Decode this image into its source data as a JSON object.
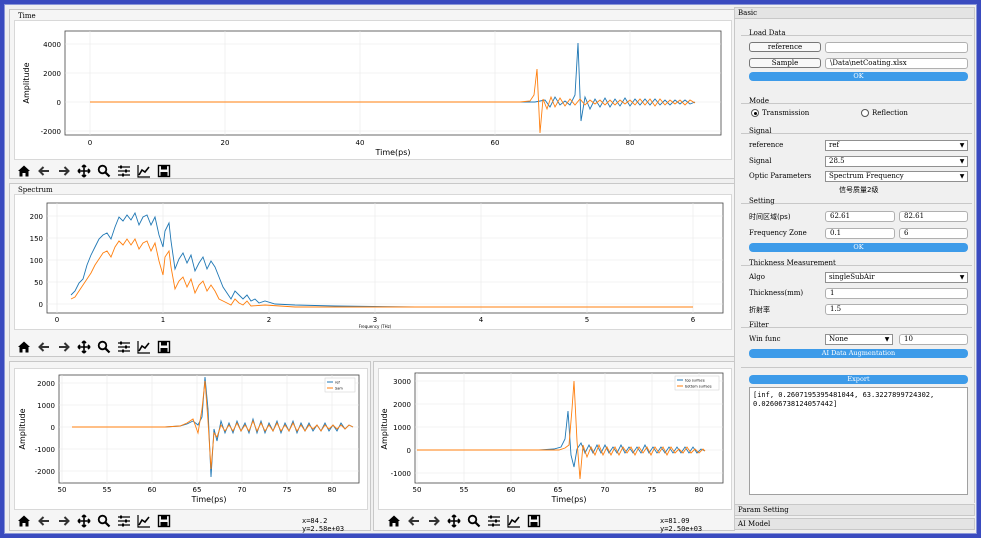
{
  "time_panel": {
    "title": "Time",
    "xlabel": "Time(ps)",
    "ylabel": "Amplitude",
    "xticks": [
      "0",
      "20",
      "40",
      "60",
      "80"
    ],
    "yticks": [
      "4000",
      "2000",
      "0",
      "-2000"
    ]
  },
  "spectrum_panel": {
    "title": "Spectrum",
    "xlabel": "Frequency (THz)",
    "xticks": [
      "0",
      "1",
      "2",
      "3",
      "4",
      "5",
      "6"
    ],
    "yticks": [
      "200",
      "150",
      "100",
      "50",
      "0"
    ]
  },
  "bottom_left": {
    "xlabel": "Time(ps)",
    "ylabel": "Amplitude",
    "xticks": [
      "50",
      "55",
      "60",
      "65",
      "70",
      "75",
      "80"
    ],
    "yticks": [
      "2000",
      "1000",
      "0",
      "-1000",
      "-2000"
    ],
    "legend": [
      "ref",
      "Sam"
    ],
    "coord": "x=84.2  y=2.58e+03"
  },
  "bottom_right": {
    "xlabel": "Time(ps)",
    "ylabel": "Amplitude",
    "xticks": [
      "50",
      "55",
      "60",
      "65",
      "70",
      "75",
      "80"
    ],
    "yticks": [
      "3000",
      "2000",
      "1000",
      "0",
      "-1000"
    ],
    "legend": [
      "top surface",
      "bottom surface"
    ],
    "coord": "x=81.09  y=2.50e+03"
  },
  "toolbar_icons": [
    "home-icon",
    "back-icon",
    "forward-icon",
    "pan-icon",
    "zoom-icon",
    "configure-icon",
    "edit-curve-icon",
    "save-icon"
  ],
  "right_panel": {
    "tab_basic": "Basic",
    "load_data": {
      "title": "Load Data",
      "reference_btn": "reference",
      "reference_path": "",
      "sample_btn": "Sample",
      "sample_path": "\\Data\\netCoating.xlsx",
      "ok": "OK"
    },
    "mode": {
      "title": "Mode",
      "transmission": "Transmission",
      "reflection": "Reflection",
      "selected": "Transmission"
    },
    "signal": {
      "title": "Signal",
      "reference_label": "reference",
      "reference_value": "ref",
      "signal_label": "Signal",
      "signal_value": "28.5",
      "optic_label": "Optic Parameters",
      "optic_value": "Spectrum Frequency",
      "quality_text": "信号质量2级"
    },
    "setting": {
      "title": "Setting",
      "time_zone_label": "时间区域(ps)",
      "time_from": "62.61",
      "time_to": "82.61",
      "freq_label": "Frequency Zone",
      "freq_from": "0.1",
      "freq_to": "6",
      "ok": "OK"
    },
    "thickness": {
      "title": "Thickness Measurement",
      "algo_label": "Algo",
      "algo_value": "singleSubAir",
      "thickness_label": "Thickness(mm)",
      "thickness_value": "1",
      "refr_label": "折射率",
      "refr_value": "1.5"
    },
    "filter": {
      "title": "Filter",
      "win_label": "Win func",
      "win_value": "None",
      "win_num": "10",
      "ai_btn": "AI Data Augmentation"
    },
    "export_btn": "Export",
    "output_text": "[inf, 0.2607195395481044, 63.3227899724302, 0.02606738124057442]",
    "tab_param": "Param Setting",
    "tab_ai": "AI Model"
  },
  "colors": {
    "blue": "#1f77b4",
    "orange": "#ff7f0e",
    "accent": "#3d9be9"
  }
}
